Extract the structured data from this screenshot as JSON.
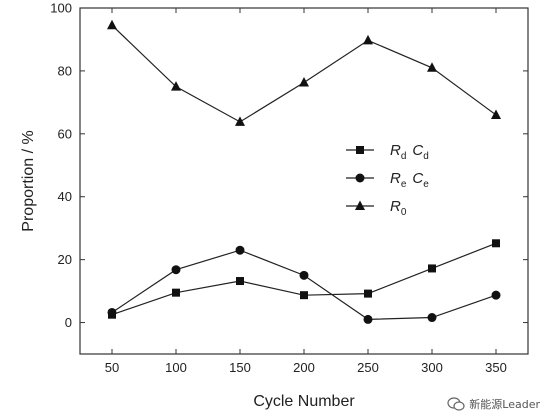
{
  "chart_data": {
    "type": "line",
    "xlabel": "Cycle Number",
    "ylabel": "Proportion / %",
    "x": [
      50,
      100,
      150,
      200,
      250,
      300,
      350
    ],
    "xlim": [
      25,
      375
    ],
    "ylim": [
      -10,
      100
    ],
    "xticks": [
      50,
      100,
      150,
      200,
      250,
      300,
      350
    ],
    "yticks": [
      0,
      20,
      40,
      60,
      80,
      100
    ],
    "grid": false,
    "legend_position": "right",
    "series": [
      {
        "name": "Rd Cd",
        "base": "R",
        "sub": "d",
        "base2": "C",
        "sub2": "d",
        "marker": "square",
        "values": [
          2.5,
          9.5,
          13.2,
          8.7,
          9.2,
          17.2,
          25.2
        ]
      },
      {
        "name": "Re Ce",
        "base": "R",
        "sub": "e",
        "base2": "C",
        "sub2": "e",
        "marker": "circle",
        "values": [
          3.2,
          16.8,
          23.0,
          15.0,
          1.0,
          1.6,
          8.7
        ]
      },
      {
        "name": "R0",
        "base": "R",
        "sub": "0",
        "base2": "",
        "sub2": "",
        "marker": "triangle",
        "values": [
          94.5,
          75.0,
          63.8,
          76.3,
          89.7,
          81.0,
          66.0
        ]
      }
    ]
  },
  "watermark": {
    "text": "新能源Leader",
    "icon": "wechat-icon"
  }
}
